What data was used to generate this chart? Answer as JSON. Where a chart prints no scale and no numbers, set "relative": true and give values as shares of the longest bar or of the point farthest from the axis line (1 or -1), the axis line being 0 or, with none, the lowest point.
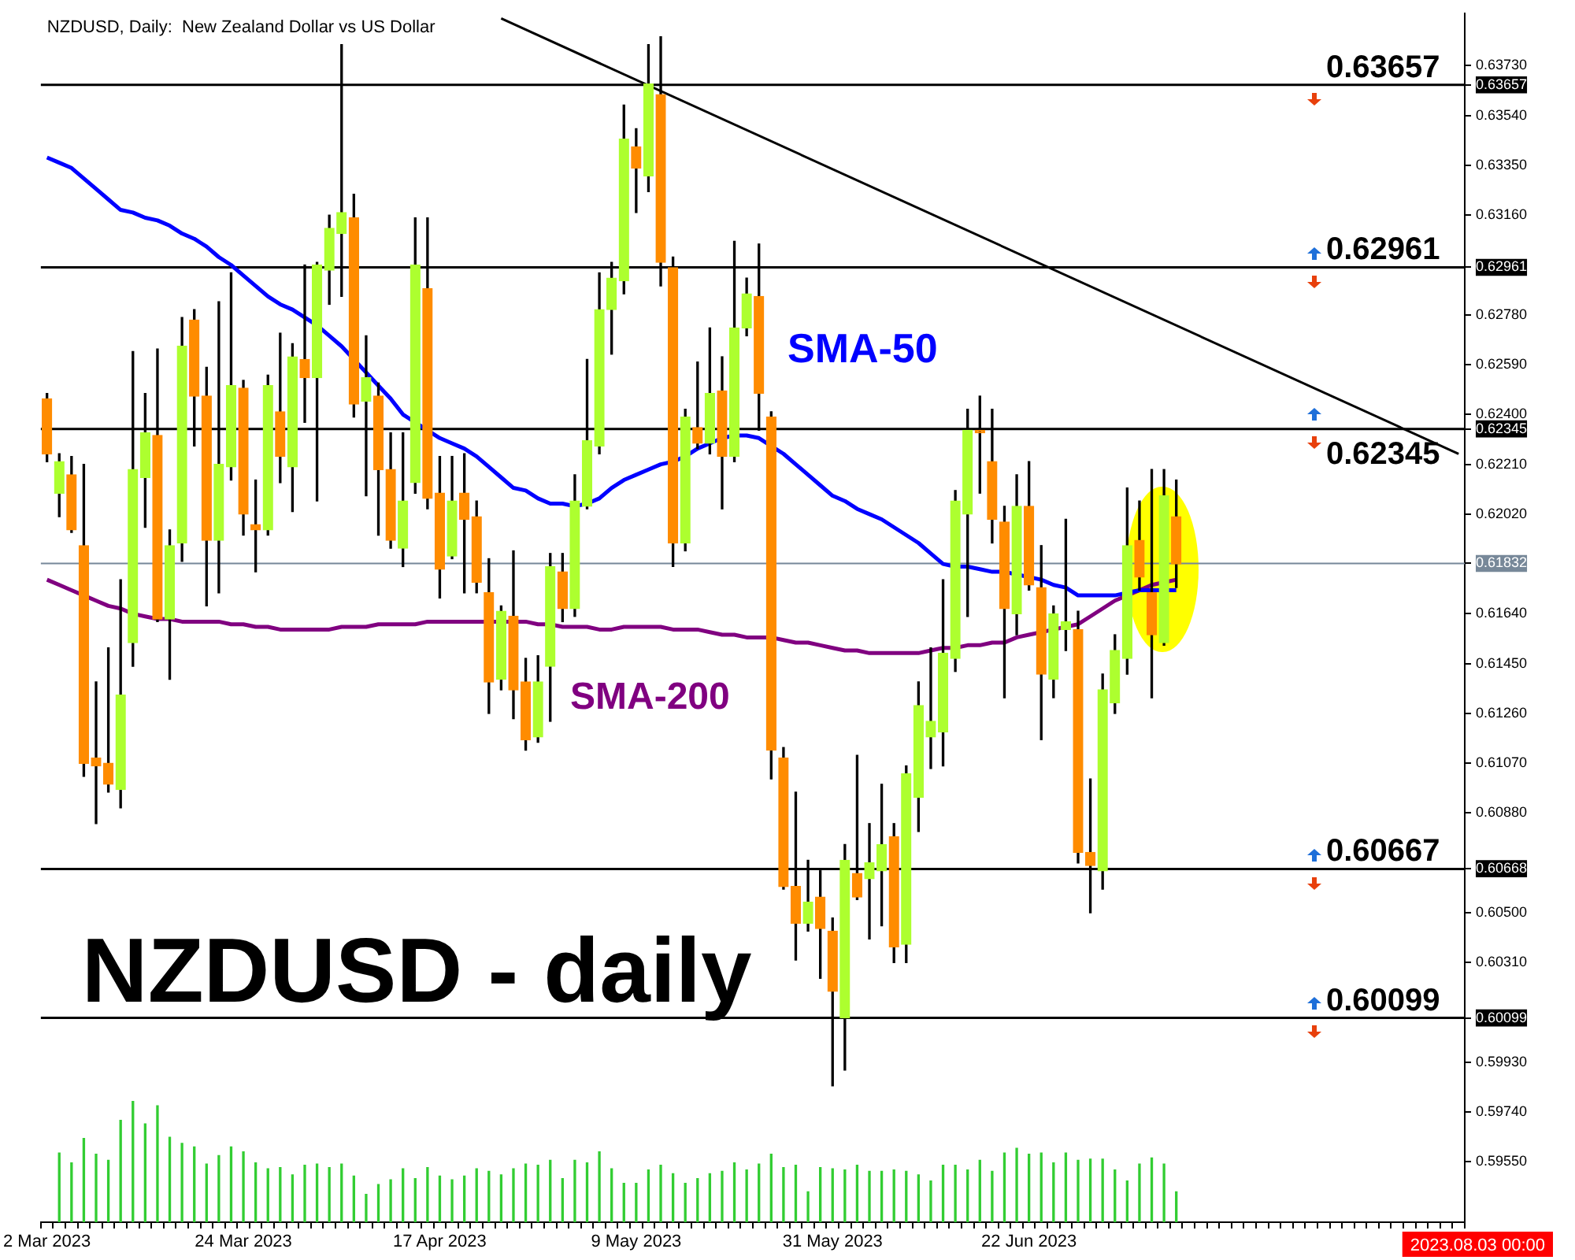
{
  "chart_data": [
    {
      "type": "candlestick",
      "title": "NZDUSD, Daily:  New Zealand Dollar vs US Dollar",
      "annotations": [
        "NZDUSD - daily",
        "2023.08.03 00:00"
      ],
      "categories": [
        "2 Mar 2023",
        null,
        null,
        null,
        null,
        null,
        null,
        null,
        null,
        null,
        null,
        null,
        null,
        null,
        null,
        null,
        "24 Mar 2023",
        null,
        null,
        null,
        null,
        null,
        null,
        null,
        null,
        null,
        null,
        null,
        null,
        null,
        null,
        null,
        "17 Apr 2023",
        null,
        null,
        null,
        null,
        null,
        null,
        null,
        null,
        null,
        null,
        null,
        null,
        null,
        null,
        null,
        "9 May 2023",
        null,
        null,
        null,
        null,
        null,
        null,
        null,
        null,
        null,
        null,
        null,
        null,
        null,
        null,
        null,
        "31 May 2023",
        null,
        null,
        null,
        null,
        null,
        null,
        null,
        null,
        null,
        null,
        null,
        null,
        null,
        null,
        null,
        "22 Jun 2023",
        null,
        null,
        null,
        null,
        null,
        null,
        null,
        null,
        null,
        null,
        null,
        null,
        null,
        null,
        null,
        null,
        null,
        null,
        null,
        null,
        null,
        null,
        null,
        null,
        null,
        null,
        null,
        null,
        null,
        null,
        null,
        null,
        null,
        null,
        null
      ],
      "ohlc": [
        [
          0.6246,
          0.6248,
          0.6222,
          0.6225
        ],
        [
          0.621,
          0.6225,
          0.6201,
          0.6222
        ],
        [
          0.6217,
          0.6224,
          0.6195,
          0.6196
        ],
        [
          0.619,
          0.6221,
          0.6102,
          0.6107
        ],
        [
          0.6109,
          0.6138,
          0.6084,
          0.6106
        ],
        [
          0.6107,
          0.6151,
          0.6096,
          0.6099
        ],
        [
          0.6097,
          0.6177,
          0.609,
          0.6133
        ],
        [
          0.6153,
          0.6264,
          0.6144,
          0.6219
        ],
        [
          0.6216,
          0.6248,
          0.6197,
          0.6233
        ],
        [
          0.6232,
          0.6265,
          0.6161,
          0.6162
        ],
        [
          0.6162,
          0.6196,
          0.6139,
          0.619
        ],
        [
          0.6191,
          0.6277,
          0.6184,
          0.6266
        ],
        [
          0.6276,
          0.628,
          0.6228,
          0.6247
        ],
        [
          0.6247,
          0.6258,
          0.6167,
          0.6192
        ],
        [
          0.6192,
          0.6283,
          0.6172,
          0.6221
        ],
        [
          0.622,
          0.6294,
          0.6215,
          0.6251
        ],
        [
          0.625,
          0.6253,
          0.6194,
          0.6202
        ],
        [
          0.6198,
          0.6215,
          0.618,
          0.6196
        ],
        [
          0.6196,
          0.6255,
          0.6194,
          0.6251
        ],
        [
          0.6241,
          0.6271,
          0.6214,
          0.6224
        ],
        [
          0.622,
          0.6267,
          0.6203,
          0.6262
        ],
        [
          0.6261,
          0.6297,
          0.6237,
          0.6254
        ],
        [
          0.6254,
          0.6298,
          0.6207,
          0.6297
        ],
        [
          0.6295,
          0.6316,
          0.6282,
          0.6311
        ],
        [
          0.6309,
          0.6381,
          0.6285,
          0.6317
        ],
        [
          0.6315,
          0.6324,
          0.6239,
          0.6244
        ],
        [
          0.6245,
          0.627,
          0.6209,
          0.6254
        ],
        [
          0.6247,
          0.6252,
          0.6194,
          0.6219
        ],
        [
          0.6219,
          0.6233,
          0.6189,
          0.6192
        ],
        [
          0.6189,
          0.6233,
          0.6182,
          0.6207
        ],
        [
          0.6214,
          0.6315,
          0.621,
          0.6297
        ],
        [
          0.6288,
          0.6315,
          0.6204,
          0.6208
        ],
        [
          0.621,
          0.6224,
          0.617,
          0.6181
        ],
        [
          0.6186,
          0.6224,
          0.6185,
          0.6207
        ],
        [
          0.621,
          0.6225,
          0.6172,
          0.62
        ],
        [
          0.6201,
          0.6207,
          0.6172,
          0.6176
        ],
        [
          0.6172,
          0.6185,
          0.6126,
          0.6138
        ],
        [
          0.6139,
          0.6167,
          0.6135,
          0.6165
        ],
        [
          0.6163,
          0.6188,
          0.6124,
          0.6135
        ],
        [
          0.6138,
          0.6147,
          0.6112,
          0.6116
        ],
        [
          0.6117,
          0.6148,
          0.6115,
          0.6138
        ],
        [
          0.6144,
          0.6187,
          0.6123,
          0.6182
        ],
        [
          0.618,
          0.6187,
          0.6161,
          0.6166
        ],
        [
          0.6166,
          0.6217,
          0.6163,
          0.6207
        ],
        [
          0.6205,
          0.6261,
          0.6204,
          0.623
        ],
        [
          0.6228,
          0.6294,
          0.6225,
          0.628
        ],
        [
          0.628,
          0.6298,
          0.6263,
          0.6292
        ],
        [
          0.6291,
          0.6358,
          0.6286,
          0.6345
        ],
        [
          0.6342,
          0.6349,
          0.6317,
          0.6334
        ],
        [
          0.6331,
          0.6381,
          0.6325,
          0.6366
        ],
        [
          0.6362,
          0.6384,
          0.6289,
          0.6298
        ],
        [
          0.6296,
          0.63,
          0.6182,
          0.6191
        ],
        [
          0.6191,
          0.6242,
          0.6188,
          0.6239
        ],
        [
          0.6235,
          0.626,
          0.6227,
          0.6229
        ],
        [
          0.6229,
          0.6273,
          0.6225,
          0.6248
        ],
        [
          0.6249,
          0.6262,
          0.6204,
          0.6224
        ],
        [
          0.6224,
          0.6306,
          0.6222,
          0.6273
        ],
        [
          0.6273,
          0.6292,
          0.627,
          0.6286
        ],
        [
          0.6285,
          0.6305,
          0.6234,
          0.6248
        ],
        [
          0.6239,
          0.6241,
          0.6101,
          0.6112
        ],
        [
          0.6109,
          0.6113,
          0.6059,
          0.606
        ],
        [
          0.606,
          0.6096,
          0.6032,
          0.6046
        ],
        [
          0.6046,
          0.607,
          0.6043,
          0.6054
        ],
        [
          0.6056,
          0.6066,
          0.6025,
          0.6044
        ],
        [
          0.6043,
          0.6048,
          0.5984,
          0.602
        ],
        [
          0.601,
          0.6076,
          0.599,
          0.607
        ],
        [
          0.6065,
          0.611,
          0.6055,
          0.6056
        ],
        [
          0.6063,
          0.6084,
          0.604,
          0.6069
        ],
        [
          0.6066,
          0.6099,
          0.6045,
          0.6076
        ],
        [
          0.6079,
          0.6084,
          0.6031,
          0.6037
        ],
        [
          0.6038,
          0.6106,
          0.6031,
          0.6103
        ],
        [
          0.6094,
          0.6138,
          0.6081,
          0.6129
        ],
        [
          0.6117,
          0.6151,
          0.6105,
          0.6123
        ],
        [
          0.6119,
          0.6177,
          0.6106,
          0.6149
        ],
        [
          0.6147,
          0.6211,
          0.6142,
          0.6207
        ],
        [
          0.6202,
          0.6242,
          0.6163,
          0.6234
        ],
        [
          0.6234,
          0.6247,
          0.621,
          0.6233
        ],
        [
          0.6222,
          0.6242,
          0.6191,
          0.62
        ],
        [
          0.6199,
          0.6205,
          0.6132,
          0.6166
        ],
        [
          0.6164,
          0.6217,
          0.6156,
          0.6205
        ],
        [
          0.6205,
          0.6222,
          0.6173,
          0.6175
        ],
        [
          0.6174,
          0.619,
          0.6116,
          0.6141
        ],
        [
          0.6139,
          0.6167,
          0.6132,
          0.6164
        ],
        [
          0.6158,
          0.62,
          0.615,
          0.6161
        ],
        [
          0.6158,
          0.6165,
          0.6069,
          0.6073
        ],
        [
          0.6073,
          0.6101,
          0.605,
          0.6068
        ],
        [
          0.6066,
          0.6141,
          0.6059,
          0.6135
        ],
        [
          0.613,
          0.6156,
          0.6126,
          0.615
        ],
        [
          0.6147,
          0.6212,
          0.6141,
          0.619
        ],
        [
          0.6192,
          0.6207,
          0.6173,
          0.6178
        ],
        [
          0.6172,
          0.6219,
          0.6132,
          0.6156
        ],
        [
          0.6153,
          0.6219,
          0.6152,
          0.6209
        ],
        [
          0.6201,
          0.6215,
          0.6174,
          0.6183
        ],
        null,
        null,
        null,
        null,
        null,
        null,
        null,
        null,
        null,
        null,
        null,
        null,
        null,
        null,
        null,
        null,
        null,
        null,
        null,
        null,
        null,
        null,
        null
      ],
      "colors": [
        "#ff8c00",
        "#adff2f",
        "#ff8c00",
        "#ff8c00",
        "#ff8c00",
        "#ff8c00",
        "#adff2f",
        "#adff2f",
        "#adff2f",
        "#ff8c00",
        "#adff2f",
        "#adff2f",
        "#ff8c00",
        "#ff8c00",
        "#adff2f",
        "#adff2f",
        "#ff8c00",
        "#ff8c00",
        "#adff2f",
        "#ff8c00",
        "#adff2f",
        "#ff8c00",
        "#adff2f",
        "#adff2f",
        "#adff2f",
        "#ff8c00",
        "#adff2f",
        "#ff8c00",
        "#ff8c00",
        "#adff2f",
        "#adff2f",
        "#ff8c00",
        "#ff8c00",
        "#adff2f",
        "#ff8c00",
        "#ff8c00",
        "#ff8c00",
        "#adff2f",
        "#ff8c00",
        "#ff8c00",
        "#adff2f",
        "#adff2f",
        "#ff8c00",
        "#adff2f",
        "#adff2f",
        "#adff2f",
        "#adff2f",
        "#adff2f",
        "#ff8c00",
        "#adff2f",
        "#ff8c00",
        "#ff8c00",
        "#adff2f",
        "#ff8c00",
        "#adff2f",
        "#ff8c00",
        "#adff2f",
        "#adff2f",
        "#ff8c00",
        "#ff8c00",
        "#ff8c00",
        "#ff8c00",
        "#adff2f",
        "#ff8c00",
        "#ff8c00",
        "#adff2f",
        "#ff8c00",
        "#adff2f",
        "#adff2f",
        "#ff8c00",
        "#adff2f",
        "#adff2f",
        "#adff2f",
        "#adff2f",
        "#adff2f",
        "#adff2f",
        "#ff8c00",
        "#ff8c00",
        "#ff8c00",
        "#adff2f",
        "#ff8c00",
        "#ff8c00",
        "#adff2f",
        "#adff2f",
        "#ff8c00",
        "#ff8c00",
        "#adff2f",
        "#adff2f",
        "#adff2f",
        "#ff8c00",
        "#ff8c00",
        "#adff2f",
        "#ff8c00",
        null,
        null,
        null,
        null,
        null,
        null,
        null,
        null,
        null,
        null,
        null,
        null,
        null,
        null,
        null,
        null,
        null,
        null,
        null,
        null,
        null,
        null,
        null
      ],
      "series": [
        {
          "type": "line",
          "name": "SMA-50",
          "color": "#0000ff",
          "values": [
            0.6338,
            0.6336,
            0.6334,
            0.633,
            0.6326,
            0.6322,
            0.6318,
            0.6317,
            0.6315,
            0.6314,
            0.6312,
            0.6309,
            0.6307,
            0.6304,
            0.63,
            0.6297,
            0.6293,
            0.6289,
            0.6285,
            0.6282,
            0.628,
            0.6277,
            0.6274,
            0.627,
            0.6266,
            0.6261,
            0.6256,
            0.6251,
            0.6246,
            0.624,
            0.6237,
            0.6234,
            0.6231,
            0.6229,
            0.6227,
            0.6224,
            0.622,
            0.6216,
            0.6212,
            0.6211,
            0.6208,
            0.6206,
            0.6206,
            0.6205,
            0.6206,
            0.6208,
            0.6212,
            0.6215,
            0.6217,
            0.6219,
            0.6221,
            0.6222,
            0.6224,
            0.6227,
            0.6229,
            0.6231,
            0.6232,
            0.6232,
            0.6231,
            0.6228,
            0.6225,
            0.6221,
            0.6217,
            0.6213,
            0.6209,
            0.6207,
            0.6204,
            0.6202,
            0.62,
            0.6197,
            0.6194,
            0.6191,
            0.6187,
            0.6183,
            0.6182,
            0.6182,
            0.6181,
            0.618,
            0.618,
            0.6179,
            0.6178,
            0.6177,
            0.6175,
            0.6174,
            0.6171,
            0.6171,
            0.6171,
            0.6171,
            0.6172,
            0.6173,
            0.6173,
            0.6173,
            0.6173,
            null,
            null,
            null,
            null,
            null,
            null,
            null,
            null,
            null,
            null,
            null,
            null,
            null,
            null,
            null,
            null,
            null,
            null,
            null,
            null,
            null,
            null,
            null
          ]
        },
        {
          "type": "line",
          "name": "SMA-200",
          "color": "#800080",
          "values": [
            0.6177,
            0.6175,
            0.6173,
            0.6171,
            0.6169,
            0.6167,
            0.6166,
            0.6164,
            0.6163,
            0.6162,
            0.6162,
            0.6161,
            0.6161,
            0.6161,
            0.6161,
            0.616,
            0.616,
            0.6159,
            0.6159,
            0.6158,
            0.6158,
            0.6158,
            0.6158,
            0.6158,
            0.6159,
            0.6159,
            0.6159,
            0.616,
            0.616,
            0.616,
            0.616,
            0.6161,
            0.6161,
            0.6161,
            0.6161,
            0.6161,
            0.6161,
            0.6161,
            0.6161,
            0.6161,
            0.616,
            0.616,
            0.6159,
            0.6159,
            0.6159,
            0.6158,
            0.6158,
            0.6159,
            0.6159,
            0.6159,
            0.6159,
            0.6158,
            0.6158,
            0.6158,
            0.6157,
            0.6156,
            0.6156,
            0.6155,
            0.6155,
            0.6155,
            0.6154,
            0.6153,
            0.6153,
            0.6152,
            0.6151,
            0.615,
            0.615,
            0.6149,
            0.6149,
            0.6149,
            0.6149,
            0.6149,
            0.615,
            0.6151,
            0.6151,
            0.6152,
            0.6152,
            0.6153,
            0.6153,
            0.6155,
            0.6156,
            0.6157,
            0.6158,
            0.6159,
            0.616,
            0.6163,
            0.6166,
            0.6169,
            0.6171,
            0.6173,
            0.6175,
            0.6176,
            0.6177,
            null,
            null,
            null,
            null,
            null,
            null,
            null,
            null,
            null,
            null,
            null,
            null,
            null,
            null,
            null,
            null,
            null,
            null,
            null,
            null,
            null,
            null,
            null
          ]
        },
        {
          "type": "line",
          "color": "#000000",
          "values": [
            null,
            null,
            null,
            null,
            null,
            null,
            null,
            null,
            null,
            null,
            null,
            null,
            null,
            null,
            null,
            null,
            null,
            null,
            null,
            null,
            null,
            null,
            null,
            null,
            null,
            null,
            null,
            null,
            null,
            null,
            null,
            null,
            null,
            null,
            null,
            null,
            null,
            0.6391,
            null,
            null,
            null,
            null,
            null,
            null,
            null,
            null,
            null,
            null,
            null,
            null,
            null,
            null,
            null,
            null,
            null,
            null,
            null,
            null,
            null,
            null,
            null,
            null,
            null,
            null,
            null,
            null,
            null,
            null,
            null,
            null,
            null,
            null,
            null,
            null,
            null,
            null,
            null,
            null,
            null,
            null,
            null,
            null,
            null,
            null,
            null,
            null,
            null,
            null,
            null,
            null,
            null,
            null,
            null,
            null,
            null,
            null,
            null,
            null,
            null,
            null,
            null,
            null,
            null,
            null,
            null,
            null,
            null,
            null,
            null,
            null,
            null,
            null,
            null,
            null,
            null,
            0.6225
          ]
        }
      ],
      "ylim": [
        0.5932,
        0.6393
      ],
      "yticks": [
        {
          "value": 0.6373,
          "label": "0.63730"
        },
        {
          "value": 0.63657,
          "label": "0.63657"
        },
        {
          "value": 0.6354,
          "label": "0.63540"
        },
        {
          "value": 0.6335,
          "label": "0.63350"
        },
        {
          "value": 0.6316,
          "label": "0.63160"
        },
        {
          "value": 0.62961,
          "label": "0.62961"
        },
        {
          "value": 0.6278,
          "label": "0.62780"
        },
        {
          "value": 0.6259,
          "label": "0.62590"
        },
        {
          "value": 0.624,
          "label": "0.62400"
        },
        {
          "value": 0.62345,
          "label": "0.62345"
        },
        {
          "value": 0.6221,
          "label": "0.62210"
        },
        {
          "value": 0.6202,
          "label": "0.62020"
        },
        {
          "value": 0.61832,
          "label": "0.61832"
        },
        {
          "value": 0.6164,
          "label": "0.61640"
        },
        {
          "value": 0.6145,
          "label": "0.61450"
        },
        {
          "value": 0.6126,
          "label": "0.61260"
        },
        {
          "value": 0.6107,
          "label": "0.61070"
        },
        {
          "value": 0.6088,
          "label": "0.60880"
        },
        {
          "value": 0.60668,
          "label": "0.60668"
        },
        {
          "value": 0.605,
          "label": "0.60500"
        },
        {
          "value": 0.6031,
          "label": "0.60310"
        },
        {
          "value": 0.60099,
          "label": "0.60099"
        },
        {
          "value": 0.5993,
          "label": "0.59930"
        },
        {
          "value": 0.5974,
          "label": "0.59740"
        },
        {
          "value": 0.5955,
          "label": "0.59550"
        }
      ],
      "ref_lines": [
        {
          "axis": "y",
          "value": 0.63657,
          "label": "0.63657",
          "color": "#000000"
        },
        {
          "axis": "y",
          "value": 0.62961,
          "label": "0.62961",
          "color": "#000000"
        },
        {
          "axis": "y",
          "value": 0.62345,
          "label": "0.62345",
          "color": "#000000"
        },
        {
          "axis": "y",
          "value": 0.61832,
          "color": "#778899"
        },
        {
          "axis": "y",
          "value": 0.60667,
          "label": "0.60667",
          "color": "#000000"
        },
        {
          "axis": "y",
          "value": 0.60099,
          "label": "0.60099",
          "color": "#000000"
        }
      ]
    },
    {
      "type": "bar",
      "relative": true,
      "color": "#32cd32",
      "categories": [
        null,
        null,
        null,
        null,
        null,
        null,
        null,
        null,
        null,
        null,
        null,
        null,
        null,
        null,
        null,
        null,
        null,
        null,
        null,
        null,
        null,
        null,
        null,
        null,
        null,
        null,
        null,
        null,
        null,
        null,
        null,
        null,
        null,
        null,
        null,
        null,
        null,
        null,
        null,
        null,
        null,
        null,
        null,
        null,
        null,
        null,
        null,
        null,
        null,
        null,
        null,
        null,
        null,
        null,
        null,
        null,
        null,
        null,
        null,
        null,
        null,
        null,
        null,
        null,
        null,
        null,
        null,
        null,
        null,
        null,
        null,
        null,
        null,
        null,
        null,
        null,
        null,
        null,
        null,
        null,
        null,
        null,
        null,
        null,
        null,
        null,
        null,
        null,
        null,
        null,
        null,
        null,
        null,
        null,
        null,
        null,
        null,
        null,
        null,
        null,
        null,
        null,
        null,
        null,
        null,
        null,
        null,
        null,
        null,
        null,
        null,
        null,
        null,
        null,
        null,
        null
      ],
      "values": [
        null,
        0.57,
        0.49,
        0.69,
        0.56,
        0.51,
        0.84,
        1,
        0.81,
        0.96,
        0.7,
        0.65,
        0.62,
        0.48,
        0.55,
        0.62,
        0.58,
        0.49,
        0.44,
        0.45,
        0.39,
        0.47,
        0.48,
        0.45,
        0.48,
        0.38,
        0.23,
        0.31,
        0.35,
        0.44,
        0.36,
        0.45,
        0.38,
        0.35,
        0.38,
        0.44,
        0.42,
        0.39,
        0.44,
        0.48,
        0.47,
        0.51,
        0.36,
        0.51,
        0.49,
        0.58,
        0.44,
        0.32,
        0.32,
        0.43,
        0.47,
        0.4,
        0.32,
        0.36,
        0.4,
        0.42,
        0.49,
        0.43,
        0.48,
        0.56,
        0.45,
        0.47,
        0.25,
        0.45,
        0.44,
        0.43,
        0.47,
        0.42,
        0.42,
        0.43,
        0.42,
        0.39,
        0.34,
        0.47,
        0.47,
        0.43,
        0.51,
        0.42,
        0.57,
        0.61,
        0.56,
        0.57,
        0.49,
        0.57,
        0.51,
        0.52,
        0.52,
        0.43,
        0.34,
        0.48,
        0.53,
        0.48,
        0.25,
        null,
        null,
        null,
        null,
        null,
        null,
        null,
        null,
        null,
        null,
        null,
        null,
        null,
        null,
        null,
        null,
        null,
        null,
        null,
        null,
        null,
        null,
        null
      ]
    }
  ]
}
